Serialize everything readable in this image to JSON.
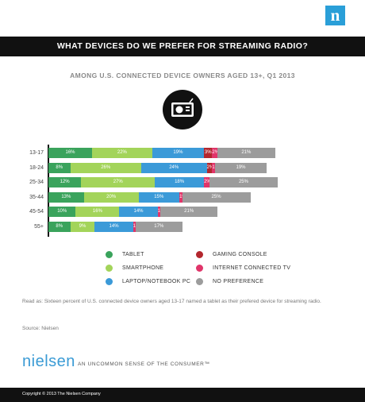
{
  "brand": {
    "logo_letter": "n",
    "wordmark": "nielsen",
    "tagline": "AN UNCOMMON SENSE OF THE CONSUMER™"
  },
  "title": "WHAT DEVICES DO WE PREFER FOR STREAMING RADIO?",
  "subtitle": "AMONG U.S. CONNECTED DEVICE OWNERS AGED 13+, Q1 2013",
  "note": "Read as: Sixteen percent of U.S. connected device owners aged 13-17 named a tablet as their prefered device for streaming radio.",
  "source": "Source: Nielsen",
  "copyright": "Copyright © 2013 The Nielsen Company",
  "chart_data": {
    "type": "bar",
    "orientation": "horizontal",
    "stacked": true,
    "categories": [
      "13-17",
      "18-24",
      "25-34",
      "35-44",
      "45-54",
      "55+"
    ],
    "series": [
      {
        "name": "TABLET",
        "color": "#3aa35c",
        "values": [
          16,
          8,
          12,
          13,
          10,
          8
        ]
      },
      {
        "name": "SMARTPHONE",
        "color": "#a3d45a",
        "values": [
          22,
          26,
          27,
          20,
          16,
          9
        ]
      },
      {
        "name": "LAPTOP/NOTEBOOK PC",
        "color": "#3b9ad8",
        "values": [
          19,
          24,
          18,
          15,
          14,
          14
        ]
      },
      {
        "name": "GAMING CONSOLE",
        "color": "#b3272e",
        "values": [
          3,
          2,
          null,
          null,
          null,
          null
        ]
      },
      {
        "name": "INTERNET CONNECTED TV",
        "color": "#e0356a",
        "values": [
          2,
          1,
          2,
          1,
          1,
          1
        ]
      },
      {
        "name": "NO PREFERENCE",
        "color": "#9c9c9c",
        "values": [
          21,
          19,
          25,
          25,
          21,
          17
        ]
      }
    ],
    "value_suffix": "%",
    "legend_position": "bottom",
    "grid": false
  }
}
